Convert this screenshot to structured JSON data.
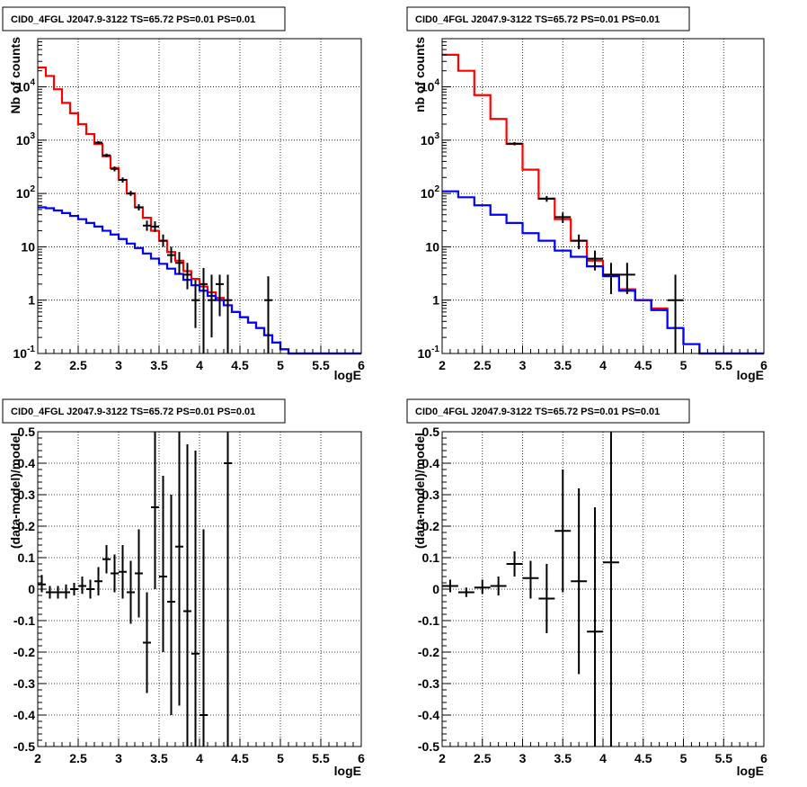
{
  "colors": {
    "data": "#000000",
    "total_model": "#ff0000",
    "background_model": "#0000ff",
    "grid": "#000000"
  },
  "chart_data": [
    {
      "type": "step-histogram",
      "title": "CID0_4FGL J2047.9-3122 TS=65.72 PS=0.01 PS=0.01",
      "xlabel": "logE",
      "ylabel": "Nb of counts",
      "xlim": [
        2,
        6
      ],
      "ylim": [
        0.1,
        80000
      ],
      "log_y": true,
      "grid": true,
      "x_ticks": [
        "2",
        "2.5",
        "3",
        "3.5",
        "4",
        "4.5",
        "5",
        "5.5",
        "6"
      ],
      "y_ticks": [
        {
          "base": "10",
          "exp": "-1"
        },
        {
          "base": "1",
          "exp": ""
        },
        {
          "base": "10",
          "exp": ""
        },
        {
          "base": "10",
          "exp": "2"
        },
        {
          "base": "10",
          "exp": "3"
        },
        {
          "base": "10",
          "exp": "4"
        }
      ],
      "bin_width": 0.1,
      "bin_low_edges": [
        2.0,
        2.1,
        2.2,
        2.3,
        2.4,
        2.5,
        2.6,
        2.7,
        2.8,
        2.9,
        3.0,
        3.1,
        3.2,
        3.3,
        3.4,
        3.5,
        3.6,
        3.7,
        3.8,
        3.9,
        4.0,
        4.1,
        4.2,
        4.3,
        4.4,
        4.5,
        4.6,
        4.7,
        4.8,
        4.9,
        5.0,
        5.1,
        5.2,
        5.3,
        5.4,
        5.5,
        5.6,
        5.7,
        5.8,
        5.9
      ],
      "series": [
        {
          "name": "",
          "role": "total_model",
          "values": [
            23000,
            16000,
            9000,
            5000,
            3200,
            2000,
            1300,
            850,
            500,
            300,
            180,
            100,
            55,
            35,
            20,
            13,
            8,
            5.5,
            3.5,
            2.5,
            1.8,
            1.4,
            1.1,
            0.8,
            0.6,
            0.48,
            0.38,
            0.3,
            0.22,
            0.16,
            0.12,
            0.1,
            0.1,
            0.1,
            0.1,
            0.1,
            0.1,
            0.1,
            0.1,
            0.1
          ]
        },
        {
          "name": "",
          "role": "background_model",
          "values": [
            55,
            53,
            48,
            43,
            38,
            33,
            28,
            24,
            20,
            17,
            14,
            11.5,
            9.5,
            7.5,
            6,
            4.8,
            3.9,
            3.1,
            2.4,
            1.9,
            1.5,
            1.2,
            1.0,
            0.8,
            0.6,
            0.48,
            0.38,
            0.3,
            0.22,
            0.16,
            0.12,
            0.1,
            0.1,
            0.1,
            0.1,
            0.1,
            0.1,
            0.1,
            0.1,
            0.1
          ]
        },
        {
          "name": "",
          "role": "data",
          "points": [
            {
              "x": 2.75,
              "y": 900,
              "ylo": 850,
              "yhi": 960
            },
            {
              "x": 2.85,
              "y": 520,
              "ylo": 480,
              "yhi": 560
            },
            {
              "x": 2.95,
              "y": 290,
              "ylo": 260,
              "yhi": 320
            },
            {
              "x": 3.05,
              "y": 180,
              "ylo": 160,
              "yhi": 200
            },
            {
              "x": 3.15,
              "y": 100,
              "ylo": 90,
              "yhi": 112
            },
            {
              "x": 3.25,
              "y": 55,
              "ylo": 48,
              "yhi": 63
            },
            {
              "x": 3.35,
              "y": 25,
              "ylo": 20,
              "yhi": 31
            },
            {
              "x": 3.45,
              "y": 24,
              "ylo": 19,
              "yhi": 30
            },
            {
              "x": 3.55,
              "y": 13,
              "ylo": 10,
              "yhi": 17
            },
            {
              "x": 3.65,
              "y": 7,
              "ylo": 5,
              "yhi": 10
            },
            {
              "x": 3.75,
              "y": 5,
              "ylo": 3,
              "yhi": 8
            },
            {
              "x": 3.85,
              "y": 3,
              "ylo": 1.6,
              "yhi": 5
            },
            {
              "x": 3.95,
              "y": 1,
              "ylo": 0.3,
              "yhi": 2.4
            },
            {
              "x": 4.05,
              "y": 2,
              "ylo": 0.1,
              "yhi": 4
            },
            {
              "x": 4.15,
              "y": 1,
              "ylo": 0.2,
              "yhi": 3
            },
            {
              "x": 4.25,
              "y": 2,
              "ylo": 0.5,
              "yhi": 3
            },
            {
              "x": 4.35,
              "y": 1,
              "ylo": 0.1,
              "yhi": 3
            },
            {
              "x": 4.85,
              "y": 1,
              "ylo": 0.1,
              "yhi": 2.8
            }
          ]
        }
      ]
    },
    {
      "type": "step-histogram",
      "title": "CID0_4FGL J2047.9-3122 TS=65.72 PS=0.01 PS=0.01",
      "xlabel": "logE",
      "ylabel": "nb of counts",
      "xlim": [
        2,
        6
      ],
      "ylim": [
        0.1,
        80000
      ],
      "log_y": true,
      "grid": true,
      "x_ticks": [
        "2",
        "2.5",
        "3",
        "3.5",
        "4",
        "4.5",
        "5",
        "5.5",
        "6"
      ],
      "y_ticks": [
        {
          "base": "10",
          "exp": "-1"
        },
        {
          "base": "1",
          "exp": ""
        },
        {
          "base": "10",
          "exp": ""
        },
        {
          "base": "10",
          "exp": "2"
        },
        {
          "base": "10",
          "exp": "3"
        },
        {
          "base": "10",
          "exp": "4"
        }
      ],
      "bin_width": 0.2,
      "bin_low_edges": [
        2.0,
        2.2,
        2.4,
        2.6,
        2.8,
        3.0,
        3.2,
        3.4,
        3.6,
        3.8,
        4.0,
        4.2,
        4.4,
        4.6,
        4.8,
        5.0,
        5.2,
        5.4,
        5.6,
        5.8
      ],
      "series": [
        {
          "name": "",
          "role": "total_model",
          "values": [
            40000,
            20000,
            7000,
            2500,
            850,
            280,
            80,
            33,
            13,
            5.5,
            3,
            1.6,
            1.0,
            0.7,
            0.3,
            0.15,
            0.1,
            0.1,
            0.1,
            0.1
          ]
        },
        {
          "name": "",
          "role": "background_model",
          "values": [
            110,
            85,
            60,
            40,
            28,
            18,
            13,
            8.5,
            6.5,
            4.3,
            2.8,
            1.5,
            1.0,
            0.65,
            0.3,
            0.15,
            0.1,
            0.1,
            0.1,
            0.1
          ]
        },
        {
          "name": "",
          "role": "data",
          "points": [
            {
              "x": 2.9,
              "y": 860,
              "ylo": 800,
              "yhi": 920
            },
            {
              "x": 3.3,
              "y": 80,
              "ylo": 70,
              "yhi": 90
            },
            {
              "x": 3.5,
              "y": 36,
              "ylo": 28,
              "yhi": 44
            },
            {
              "x": 3.7,
              "y": 13,
              "ylo": 9,
              "yhi": 17
            },
            {
              "x": 3.9,
              "y": 6,
              "ylo": 3.6,
              "yhi": 8.5
            },
            {
              "x": 4.1,
              "y": 3,
              "ylo": 1.3,
              "yhi": 5
            },
            {
              "x": 4.3,
              "y": 3,
              "ylo": 1.3,
              "yhi": 5
            },
            {
              "x": 4.9,
              "y": 1,
              "ylo": 0.1,
              "yhi": 3
            }
          ]
        }
      ]
    },
    {
      "type": "errorbar",
      "title": "CID0_4FGL J2047.9-3122 TS=65.72 PS=0.01 PS=0.01",
      "xlabel": "logE",
      "ylabel": "(data-model)/model",
      "xlim": [
        2,
        6
      ],
      "ylim": [
        -0.5,
        0.5
      ],
      "log_y": false,
      "grid": true,
      "x_ticks": [
        "2",
        "2.5",
        "3",
        "3.5",
        "4",
        "4.5",
        "5",
        "5.5",
        "6"
      ],
      "y_ticks": [
        "-0.5",
        "-0.4",
        "-0.3",
        "-0.2",
        "-0.1",
        "0",
        "0.1",
        "0.2",
        "0.3",
        "0.4",
        "0.5"
      ],
      "xerr": 0.05,
      "series": [
        {
          "name": "",
          "role": "data",
          "points": [
            {
              "x": 2.05,
              "y": 0.015,
              "ylo": -0.01,
              "yhi": 0.045
            },
            {
              "x": 2.15,
              "y": -0.01,
              "ylo": -0.03,
              "yhi": 0.01
            },
            {
              "x": 2.25,
              "y": -0.01,
              "ylo": -0.03,
              "yhi": 0.01
            },
            {
              "x": 2.35,
              "y": -0.01,
              "ylo": -0.03,
              "yhi": 0.015
            },
            {
              "x": 2.45,
              "y": 0.0,
              "ylo": -0.02,
              "yhi": 0.02
            },
            {
              "x": 2.55,
              "y": 0.01,
              "ylo": -0.015,
              "yhi": 0.04
            },
            {
              "x": 2.65,
              "y": 0.0,
              "ylo": -0.03,
              "yhi": 0.03
            },
            {
              "x": 2.75,
              "y": 0.025,
              "ylo": -0.02,
              "yhi": 0.07
            },
            {
              "x": 2.85,
              "y": 0.095,
              "ylo": 0.05,
              "yhi": 0.14
            },
            {
              "x": 2.95,
              "y": 0.05,
              "ylo": -0.01,
              "yhi": 0.11
            },
            {
              "x": 3.05,
              "y": 0.055,
              "ylo": -0.03,
              "yhi": 0.14
            },
            {
              "x": 3.15,
              "y": -0.01,
              "ylo": -0.11,
              "yhi": 0.09
            },
            {
              "x": 3.25,
              "y": 0.05,
              "ylo": -0.09,
              "yhi": 0.19
            },
            {
              "x": 3.35,
              "y": -0.17,
              "ylo": -0.33,
              "yhi": -0.01
            },
            {
              "x": 3.45,
              "y": 0.26,
              "ylo": 0.0,
              "yhi": 0.5
            },
            {
              "x": 3.55,
              "y": 0.04,
              "ylo": -0.2,
              "yhi": 0.36
            },
            {
              "x": 3.65,
              "y": -0.04,
              "ylo": -0.4,
              "yhi": 0.3
            },
            {
              "x": 3.75,
              "y": 0.135,
              "ylo": -0.37,
              "yhi": 0.5
            },
            {
              "x": 3.85,
              "y": -0.07,
              "ylo": -0.5,
              "yhi": 0.46
            },
            {
              "x": 3.95,
              "y": -0.205,
              "ylo": -0.5,
              "yhi": 0.44
            },
            {
              "x": 4.05,
              "y": -0.4,
              "ylo": -0.5,
              "yhi": 0.19
            },
            {
              "x": 4.35,
              "y": 0.4,
              "ylo": -0.5,
              "yhi": 0.5
            }
          ]
        }
      ]
    },
    {
      "type": "errorbar",
      "title": "CID0_4FGL J2047.9-3122 TS=65.72 PS=0.01 PS=0.01",
      "xlabel": "logE",
      "ylabel": "(data-model)/model",
      "xlim": [
        2,
        6
      ],
      "ylim": [
        -0.5,
        0.5
      ],
      "log_y": false,
      "grid": true,
      "x_ticks": [
        "2",
        "2.5",
        "3",
        "3.5",
        "4",
        "4.5",
        "5",
        "5.5",
        "6"
      ],
      "y_ticks": [
        "-0.5",
        "-0.4",
        "-0.3",
        "-0.2",
        "-0.1",
        "0",
        "0.1",
        "0.2",
        "0.3",
        "0.4",
        "0.5"
      ],
      "xerr": 0.1,
      "series": [
        {
          "name": "",
          "role": "data",
          "points": [
            {
              "x": 2.1,
              "y": 0.01,
              "ylo": -0.01,
              "yhi": 0.03
            },
            {
              "x": 2.3,
              "y": -0.01,
              "ylo": -0.025,
              "yhi": 0.005
            },
            {
              "x": 2.5,
              "y": 0.005,
              "ylo": -0.015,
              "yhi": 0.03
            },
            {
              "x": 2.7,
              "y": 0.01,
              "ylo": -0.02,
              "yhi": 0.04
            },
            {
              "x": 2.9,
              "y": 0.08,
              "ylo": 0.04,
              "yhi": 0.12
            },
            {
              "x": 3.1,
              "y": 0.035,
              "ylo": -0.03,
              "yhi": 0.09
            },
            {
              "x": 3.3,
              "y": -0.03,
              "ylo": -0.14,
              "yhi": 0.08
            },
            {
              "x": 3.5,
              "y": 0.185,
              "ylo": -0.01,
              "yhi": 0.38
            },
            {
              "x": 3.7,
              "y": 0.025,
              "ylo": -0.27,
              "yhi": 0.32
            },
            {
              "x": 3.9,
              "y": -0.135,
              "ylo": -0.5,
              "yhi": 0.26
            },
            {
              "x": 4.1,
              "y": 0.085,
              "ylo": -0.5,
              "yhi": 0.5
            }
          ]
        }
      ]
    }
  ]
}
